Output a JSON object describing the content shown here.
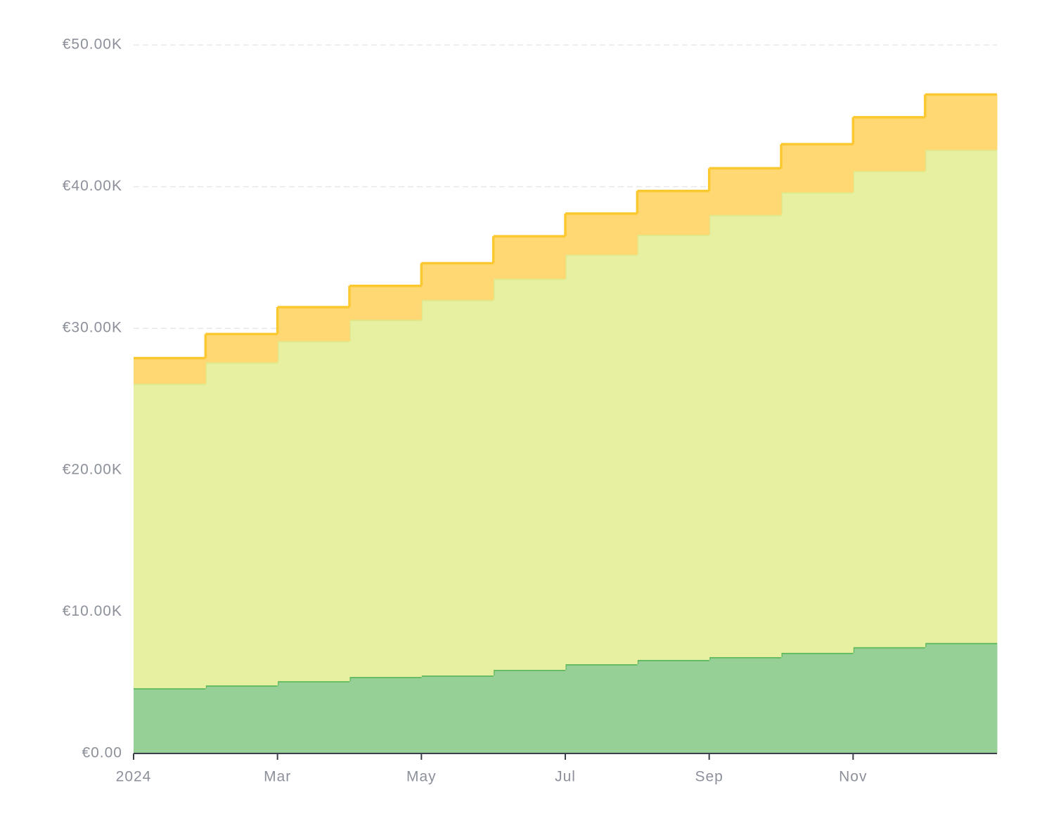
{
  "chart_data": {
    "type": "stacked-step-area",
    "categories": [
      "2024",
      null,
      "Mar",
      null,
      "May",
      null,
      "Jul",
      null,
      "Sep",
      null,
      "Nov",
      null
    ],
    "series": [
      {
        "color": "#5cb85c",
        "fill": "#96d096",
        "values": [
          4600,
          4800,
          5100,
          5400,
          5500,
          5900,
          6300,
          6600,
          6800,
          7100,
          7500,
          7800
        ]
      },
      {
        "color": "#dde98c",
        "fill": "#e6f0a0",
        "values": [
          21500,
          22800,
          24000,
          25200,
          26500,
          27600,
          28900,
          30000,
          31200,
          32500,
          33600,
          34800
        ]
      },
      {
        "color": "#fcc82f",
        "fill": "#ffd874",
        "values": [
          1800,
          2000,
          2400,
          2400,
          2600,
          3000,
          2900,
          3100,
          3300,
          3400,
          3800,
          3900
        ]
      }
    ],
    "ylim": [
      0,
      50000
    ],
    "yticks": [
      {
        "value": 0,
        "label": "€0.00"
      },
      {
        "value": 10000,
        "label": "€10.00K"
      },
      {
        "value": 20000,
        "label": "€20.00K"
      },
      {
        "value": 30000,
        "label": "€30.00K"
      },
      {
        "value": 40000,
        "label": "€40.00K"
      },
      {
        "value": 50000,
        "label": "€50.00K"
      }
    ],
    "grid": true
  }
}
